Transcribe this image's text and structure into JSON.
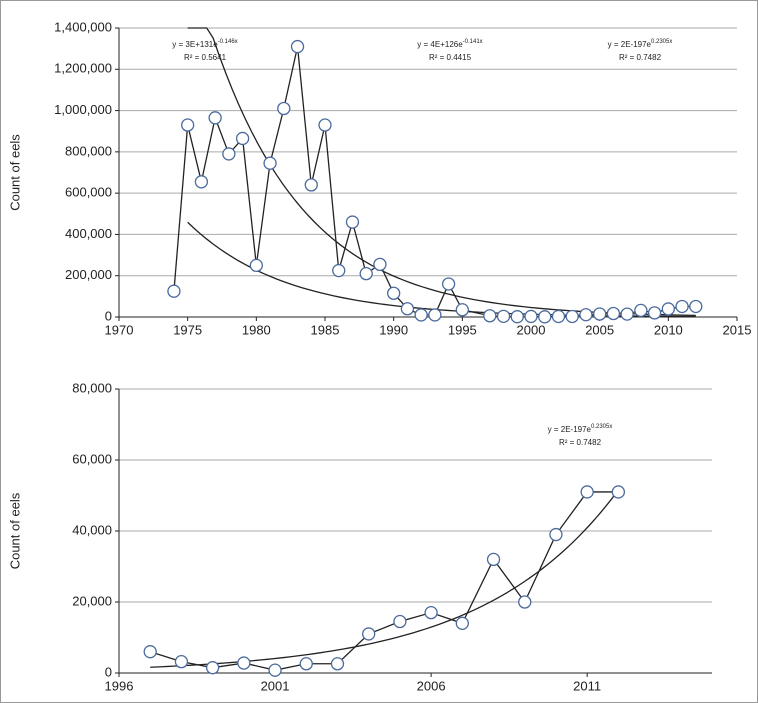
{
  "chart_data": [
    {
      "type": "line",
      "y_label": "Count of eels",
      "x": [
        1974,
        1975,
        1976,
        1977,
        1978,
        1979,
        1980,
        1981,
        1982,
        1983,
        1984,
        1985,
        1986,
        1987,
        1988,
        1989,
        1990,
        1991,
        1992,
        1993,
        1994,
        1995,
        1997,
        1998,
        1999,
        2000,
        2001,
        2002,
        2003,
        2004,
        2005,
        2006,
        2007,
        2008,
        2009,
        2010,
        2011,
        2012
      ],
      "values": [
        125000,
        930000,
        655000,
        965000,
        790000,
        865000,
        250000,
        745000,
        1010000,
        1310000,
        640000,
        930000,
        225000,
        460000,
        210000,
        255000,
        115000,
        40000,
        10000,
        10000,
        160000,
        35000,
        6000,
        3200,
        1500,
        2800,
        800,
        2600,
        2600,
        11000,
        14500,
        17000,
        14000,
        32000,
        20000,
        39000,
        51000,
        51000
      ],
      "color": "#4a6a9c",
      "xlim": [
        1970,
        2015
      ],
      "xticks": [
        1970,
        1975,
        1980,
        1985,
        1990,
        1995,
        2000,
        2005,
        2010,
        2015
      ],
      "ylim": [
        0,
        1400000
      ],
      "yticks": [
        0,
        {
          "value": 200000,
          "label": "200,000"
        },
        {
          "value": 400000,
          "label": "400,000"
        },
        {
          "value": 600000,
          "label": "600,000"
        },
        {
          "value": 800000,
          "label": "800,000"
        },
        {
          "value": 1000000,
          "label": "1,000,000"
        },
        {
          "value": 1200000,
          "label": "1,200,000"
        },
        {
          "value": 1400000,
          "label": "1,400,000"
        }
      ],
      "grid": true,
      "trendlines": [
        {
          "a": 3e+131,
          "b": -0.146,
          "x_range": [
            1975,
            2012
          ]
        },
        {
          "a": 4e+126,
          "b": -0.141,
          "x_range": [
            1975,
            2012
          ]
        }
      ],
      "annotations": [
        {
          "equation": "y = 3E+131e",
          "exponent": "-0.146x",
          "r2": "R² = 0.5641"
        },
        {
          "equation": "y = 4E+126e",
          "exponent": "-0.141x",
          "r2": "R² = 0.4415"
        },
        {
          "equation": "y = 2E-197e",
          "exponent": "0.2305x",
          "r2": "R² = 0.7482"
        }
      ]
    },
    {
      "type": "line",
      "y_label": "Count of eels",
      "x": [
        1997,
        1998,
        1999,
        2000,
        2001,
        2002,
        2003,
        2004,
        2005,
        2006,
        2007,
        2008,
        2009,
        2010,
        2011,
        2012
      ],
      "values": [
        6000,
        3200,
        1500,
        2800,
        800,
        2600,
        2600,
        11000,
        14500,
        17000,
        14000,
        32000,
        20000,
        39000,
        51000,
        51000
      ],
      "color": "#4a6a9c",
      "xlim": [
        1996,
        2015
      ],
      "xticks": [
        1996,
        2001,
        2006,
        2011
      ],
      "ylim": [
        0,
        80000
      ],
      "yticks": [
        0,
        {
          "value": 20000,
          "label": "20,000"
        },
        {
          "value": 40000,
          "label": "40,000"
        },
        {
          "value": 60000,
          "label": "60,000"
        },
        {
          "value": 80000,
          "label": "80,000"
        }
      ],
      "grid": true,
      "trendlines": [
        {
          "a": 2e-197,
          "b": 0.2305,
          "x_range": [
            1997,
            2012
          ]
        }
      ],
      "annotations": [
        {
          "equation": "y = 2E-197e",
          "exponent": "0.2305x",
          "r2": "R² = 0.7482"
        }
      ]
    }
  ]
}
